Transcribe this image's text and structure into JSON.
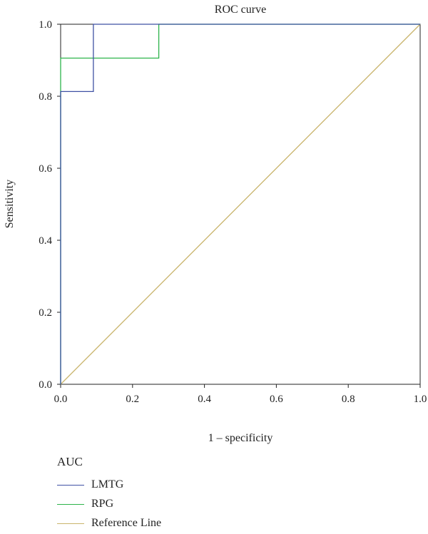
{
  "chart_data": {
    "type": "line",
    "title": "ROC curve",
    "xlabel": "1 – specificity",
    "ylabel": "Sensitivity",
    "xlim": [
      0.0,
      1.0
    ],
    "ylim": [
      0.0,
      1.0
    ],
    "xticks": [
      "0.0",
      "0.2",
      "0.4",
      "0.6",
      "0.8",
      "1.0"
    ],
    "yticks": [
      "0.0",
      "0.2",
      "0.4",
      "0.6",
      "0.8",
      "1.0"
    ],
    "grid": false,
    "series": [
      {
        "name": "LMTG",
        "color": "#3f51a4",
        "x": [
          0.0,
          0.0,
          0.091,
          0.091,
          1.0
        ],
        "y": [
          0.0,
          0.813,
          0.813,
          1.0,
          1.0
        ]
      },
      {
        "name": "RPG",
        "color": "#2db34a",
        "x": [
          0.0,
          0.0,
          0.273,
          0.273,
          1.0
        ],
        "y": [
          0.0,
          0.906,
          0.906,
          1.0,
          1.0
        ]
      },
      {
        "name": "Reference Line",
        "color": "#c9b46b",
        "x": [
          0.0,
          1.0
        ],
        "y": [
          0.0,
          1.0
        ]
      }
    ],
    "legend": {
      "title": "AUC",
      "placement": "bottom-left"
    }
  }
}
